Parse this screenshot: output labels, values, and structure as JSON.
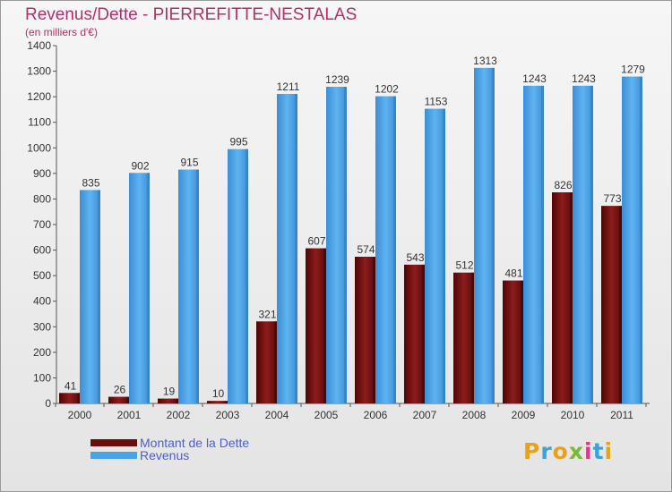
{
  "header": {
    "title": "Revenus/Dette - PIERREFITTE-NESTALAS",
    "subtitle": "(en milliers d'€)"
  },
  "colors": {
    "title": "#b5306a",
    "dette": "#7a1010",
    "revenus": "#4aa3e6",
    "legend_text": "#4a5ed8",
    "axis": "#555555"
  },
  "legend": {
    "items": [
      {
        "label": "Montant de la Dette",
        "color": "#6b0d0d"
      },
      {
        "label": "Revenus",
        "color": "#4aa3e6"
      }
    ]
  },
  "logo": {
    "text": "Proxiti",
    "letter_colors": [
      "#e8a21a",
      "#3aa3d8",
      "#e8a21a",
      "#7ab83a",
      "#d83a8a",
      "#3aa3d8",
      "#e8a21a"
    ]
  },
  "chart_data": {
    "type": "bar",
    "title": "Revenus/Dette - PIERREFITTE-NESTALAS",
    "subtitle": "(en milliers d'€)",
    "categories": [
      "2000",
      "2001",
      "2002",
      "2003",
      "2004",
      "2005",
      "2006",
      "2007",
      "2008",
      "2009",
      "2010",
      "2011"
    ],
    "series": [
      {
        "name": "Montant de la Dette",
        "values": [
          41,
          26,
          19,
          10,
          321,
          607,
          574,
          543,
          512,
          481,
          826,
          773
        ]
      },
      {
        "name": "Revenus",
        "values": [
          835,
          902,
          915,
          995,
          1211,
          1239,
          1202,
          1153,
          1313,
          1243,
          1243,
          1279
        ]
      }
    ],
    "ylim": [
      0,
      1400
    ],
    "yticks": [
      0,
      100,
      200,
      300,
      400,
      500,
      600,
      700,
      800,
      900,
      1000,
      1100,
      1200,
      1300,
      1400
    ],
    "grid": false,
    "legend_position": "bottom-left"
  }
}
